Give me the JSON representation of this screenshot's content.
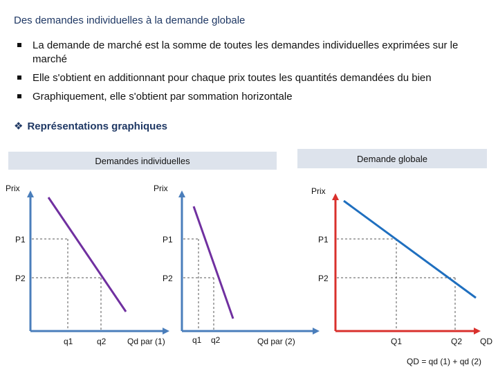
{
  "title": "Des demandes individuelles à la demande globale",
  "bullets": [
    "La demande de marché est la somme de toutes les demandes individuelles exprimées sur le marché",
    "Elle s'obtient en additionnant pour chaque prix toutes les quantités demandées du bien",
    "Graphiquement, elle s'obtient par sommation horizontale"
  ],
  "subheading": "Représentations graphiques",
  "boxes": {
    "individual": "Demandes individuelles",
    "global": "Demande globale"
  },
  "graph1": {
    "y_label": "Prix",
    "p1": "P1",
    "p2": "P2",
    "q1": "q1",
    "q2": "q2",
    "x_label": "Qd par (1)",
    "line_color": "#7030a0"
  },
  "graph2": {
    "y_label": "Prix",
    "p1": "P1",
    "p2": "P2",
    "q1": "q1",
    "q2": "q2",
    "x_label": "Qd par (2)",
    "line_color": "#7030a0"
  },
  "graph3": {
    "y_label": "Prix",
    "p1": "P1",
    "p2": "P2",
    "q1": "Q1",
    "q2": "Q2",
    "x_label": "QD",
    "line_color": "#1f6fbf",
    "formula": "QD = qd (1) + qd (2)"
  },
  "colors": {
    "axis_blue": "#4a7ebb",
    "axis_red": "#d9302c",
    "heading": "#1f3864",
    "box_bg": "#dde3ec"
  }
}
